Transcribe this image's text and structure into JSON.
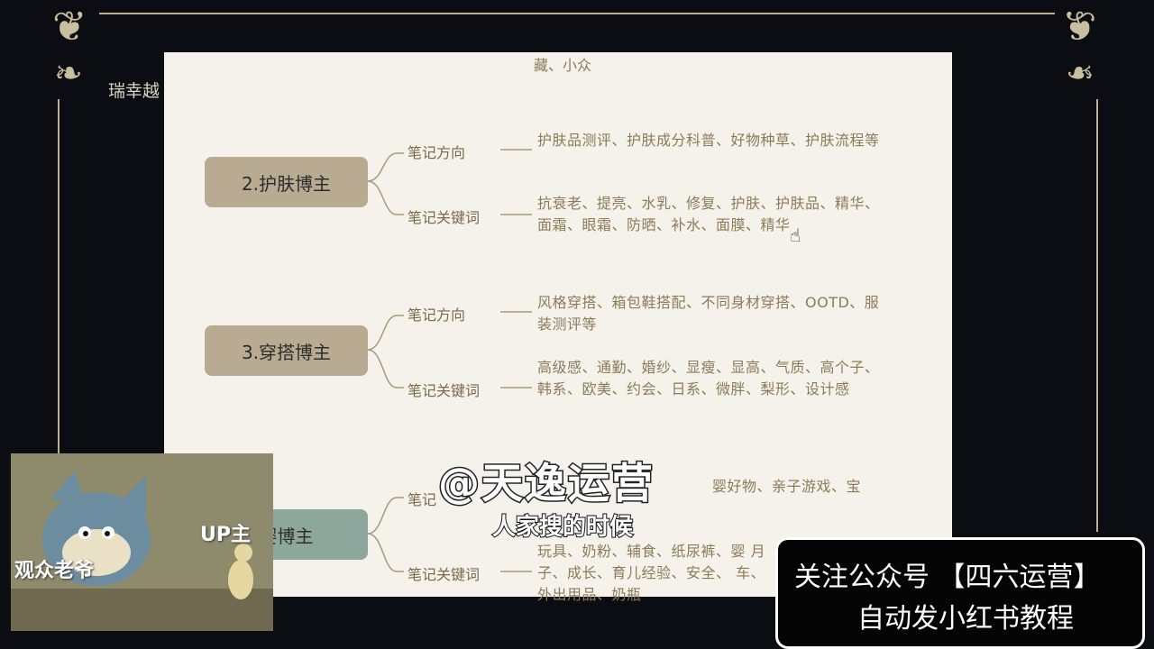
{
  "background_text": "瑞幸越",
  "top_snippet": "藏、小众",
  "nodes": [
    {
      "label": "2.护肤博主",
      "branches": [
        {
          "label": "笔记方向",
          "text": "护肤品测评、护肤成分科普、好物种草、护肤流程等"
        },
        {
          "label": "笔记关键词",
          "text": "抗衰老、提亮、水乳、修复、护肤、护肤品、精华、面霜、眼霜、防晒、补水、面膜、精华"
        }
      ]
    },
    {
      "label": "3.穿搭博主",
      "branches": [
        {
          "label": "笔记方向",
          "text": "风格穿搭、箱包鞋搭配、不同身材穿搭、OOTD、服装测评等"
        },
        {
          "label": "笔记关键词",
          "text": "高级感、通勤、婚纱、显瘦、显高、气质、高个子、韩系、欧美、约会、日系、微胖、梨形、设计感"
        }
      ]
    },
    {
      "label": "婴博主",
      "branches": [
        {
          "label": "笔记",
          "text": "婴好物、亲子游戏、宝"
        },
        {
          "label": "笔记关键词",
          "text": "玩具、奶粉、辅食、纸尿裤、婴 月子、成长、育儿经验、安全、 车、外出用品、奶瓶"
        }
      ]
    }
  ],
  "webcam": {
    "up_label": "UP主",
    "viewer_label": "观众老爷"
  },
  "watermark": "@天逸运营",
  "subtitle": "人家搜的时候",
  "promo": {
    "line1": "关注公众号 【四六运营】",
    "line2": "自动发小红书教程"
  },
  "colors": {
    "node_tan": "#b8ab91",
    "node_teal": "#8ea79c",
    "doc_bg": "#f4f2ea",
    "leaf_text": "#8b7b58"
  }
}
